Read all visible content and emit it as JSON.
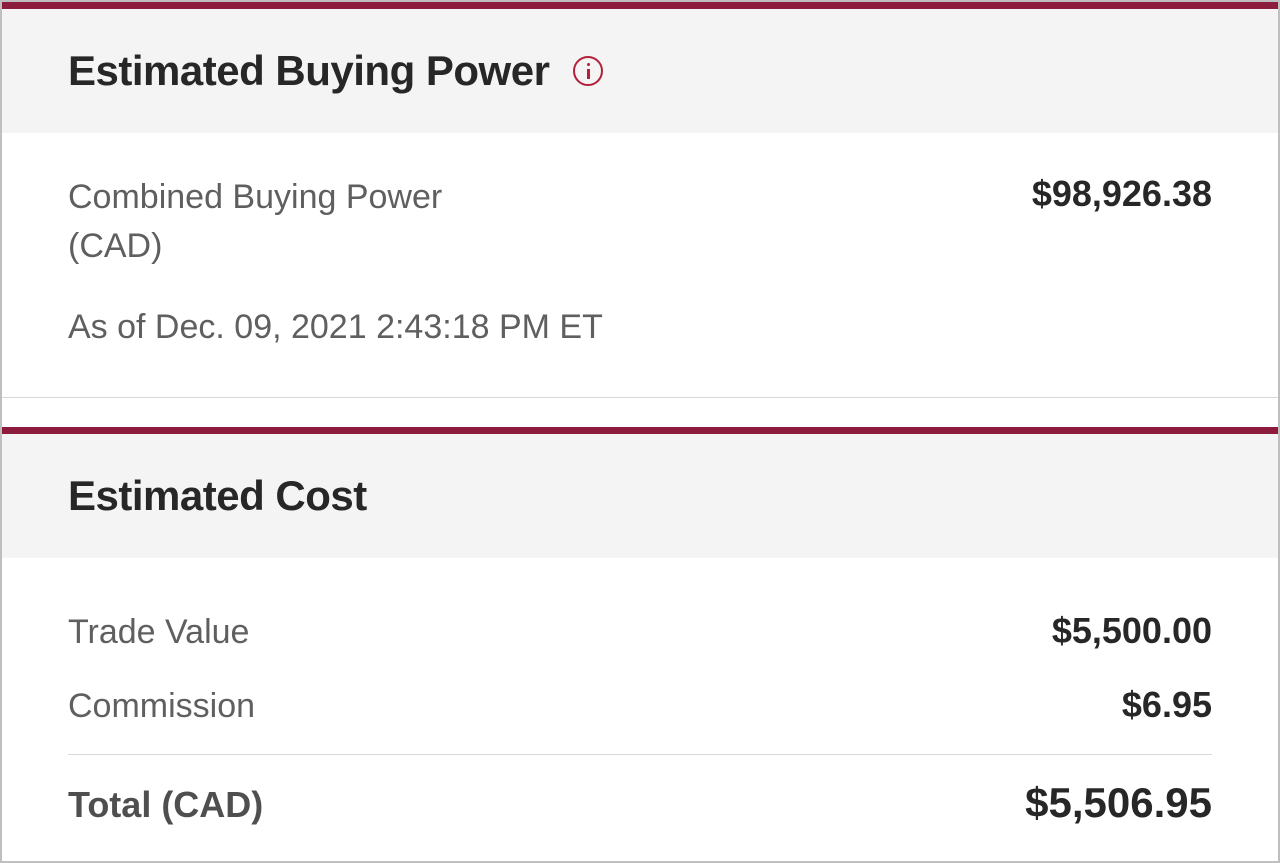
{
  "colors": {
    "accent": "#8d1b3d",
    "header_bg": "#f4f4f4",
    "body_bg": "#ffffff",
    "title_text": "#272727",
    "label_text": "#5f5f5f",
    "value_text": "#272727",
    "info_icon": "#b41f3a",
    "divider": "#d9d9d9"
  },
  "buying_power": {
    "title": "Estimated Buying Power",
    "combined_label": "Combined Buying Power (CAD)",
    "combined_value": "$98,926.38",
    "timestamp": "As of Dec. 09, 2021 2:43:18 PM ET"
  },
  "estimated_cost": {
    "title": "Estimated Cost",
    "rows": [
      {
        "label": "Trade Value",
        "value": "$5,500.00"
      },
      {
        "label": "Commission",
        "value": "$6.95"
      }
    ],
    "total_label": "Total (CAD)",
    "total_value": "$5,506.95"
  }
}
